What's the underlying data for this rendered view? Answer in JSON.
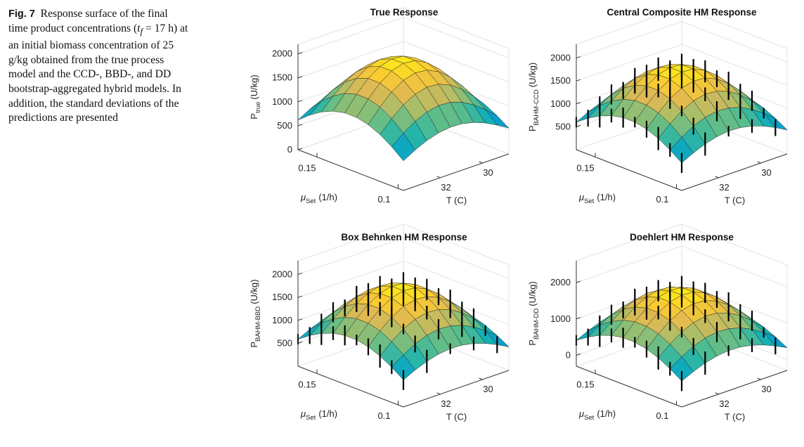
{
  "caption": {
    "label": "Fig. 7",
    "text_before": "Response surface of the final time product concentrations (",
    "math_var": "t",
    "math_sub": "f",
    "text_after": " = 17 h) at an initial biomass concentration of 25 g/kg obtained from the true process model and the CCD-, BBD-, and DD bootstrap-aggregated hybrid models. In addition, the standard deviations of the predictions are presented"
  },
  "chart_data": [
    {
      "type": "surface",
      "title": "True Response",
      "zlabel_main": "P",
      "zlabel_sub": "true",
      "zlabel_unit": "(U/kg)",
      "x_label_sym": "μ",
      "x_label_sub": "Set",
      "x_label_unit": "(1/h)",
      "y_label": "T (C)",
      "x_ticks": [
        "0.15",
        "0.1"
      ],
      "y_ticks": [
        "32",
        "30"
      ],
      "z_ticks": [
        "0",
        "500",
        "1000",
        "1500",
        "2000"
      ],
      "zlim": [
        0,
        2200
      ],
      "peak": 1950,
      "error_bars": false
    },
    {
      "type": "surface",
      "title": "Central Composite HM Response",
      "zlabel_main": "P",
      "zlabel_sub": "BAHM-CCD",
      "zlabel_unit": "(U/kg)",
      "x_label_sym": "μ",
      "x_label_sub": "Set",
      "x_label_unit": "(1/h)",
      "y_label": "T (C)",
      "x_ticks": [
        "0.15",
        "0.1"
      ],
      "y_ticks": [
        "32",
        "30"
      ],
      "z_ticks": [
        "500",
        "1000",
        "1500",
        "2000"
      ],
      "zlim": [
        0,
        2300
      ],
      "peak": 1850,
      "error_bars": true
    },
    {
      "type": "surface",
      "title": "Box Behnken HM Response",
      "zlabel_main": "P",
      "zlabel_sub": "BAHM-BBD",
      "zlabel_unit": "(U/kg)",
      "x_label_sym": "μ",
      "x_label_sub": "Set",
      "x_label_unit": "(1/h)",
      "y_label": "T (C)",
      "x_ticks": [
        "0.15",
        "0.1"
      ],
      "y_ticks": [
        "32",
        "30"
      ],
      "z_ticks": [
        "500",
        "1000",
        "1500",
        "2000"
      ],
      "zlim": [
        0,
        2300
      ],
      "peak": 1800,
      "error_bars": true
    },
    {
      "type": "surface",
      "title": "Doehlert HM Response",
      "zlabel_main": "P",
      "zlabel_sub": "BAHM-DD",
      "zlabel_unit": "(U/kg)",
      "x_label_sym": "μ",
      "x_label_sub": "Set",
      "x_label_unit": "(1/h)",
      "y_label": "T (C)",
      "x_ticks": [
        "0.15",
        "0.1"
      ],
      "y_ticks": [
        "32",
        "30"
      ],
      "z_ticks": [
        "0",
        "1000",
        "2000"
      ],
      "zlim": [
        -300,
        2600
      ],
      "peak": 1850,
      "error_bars": true
    }
  ]
}
